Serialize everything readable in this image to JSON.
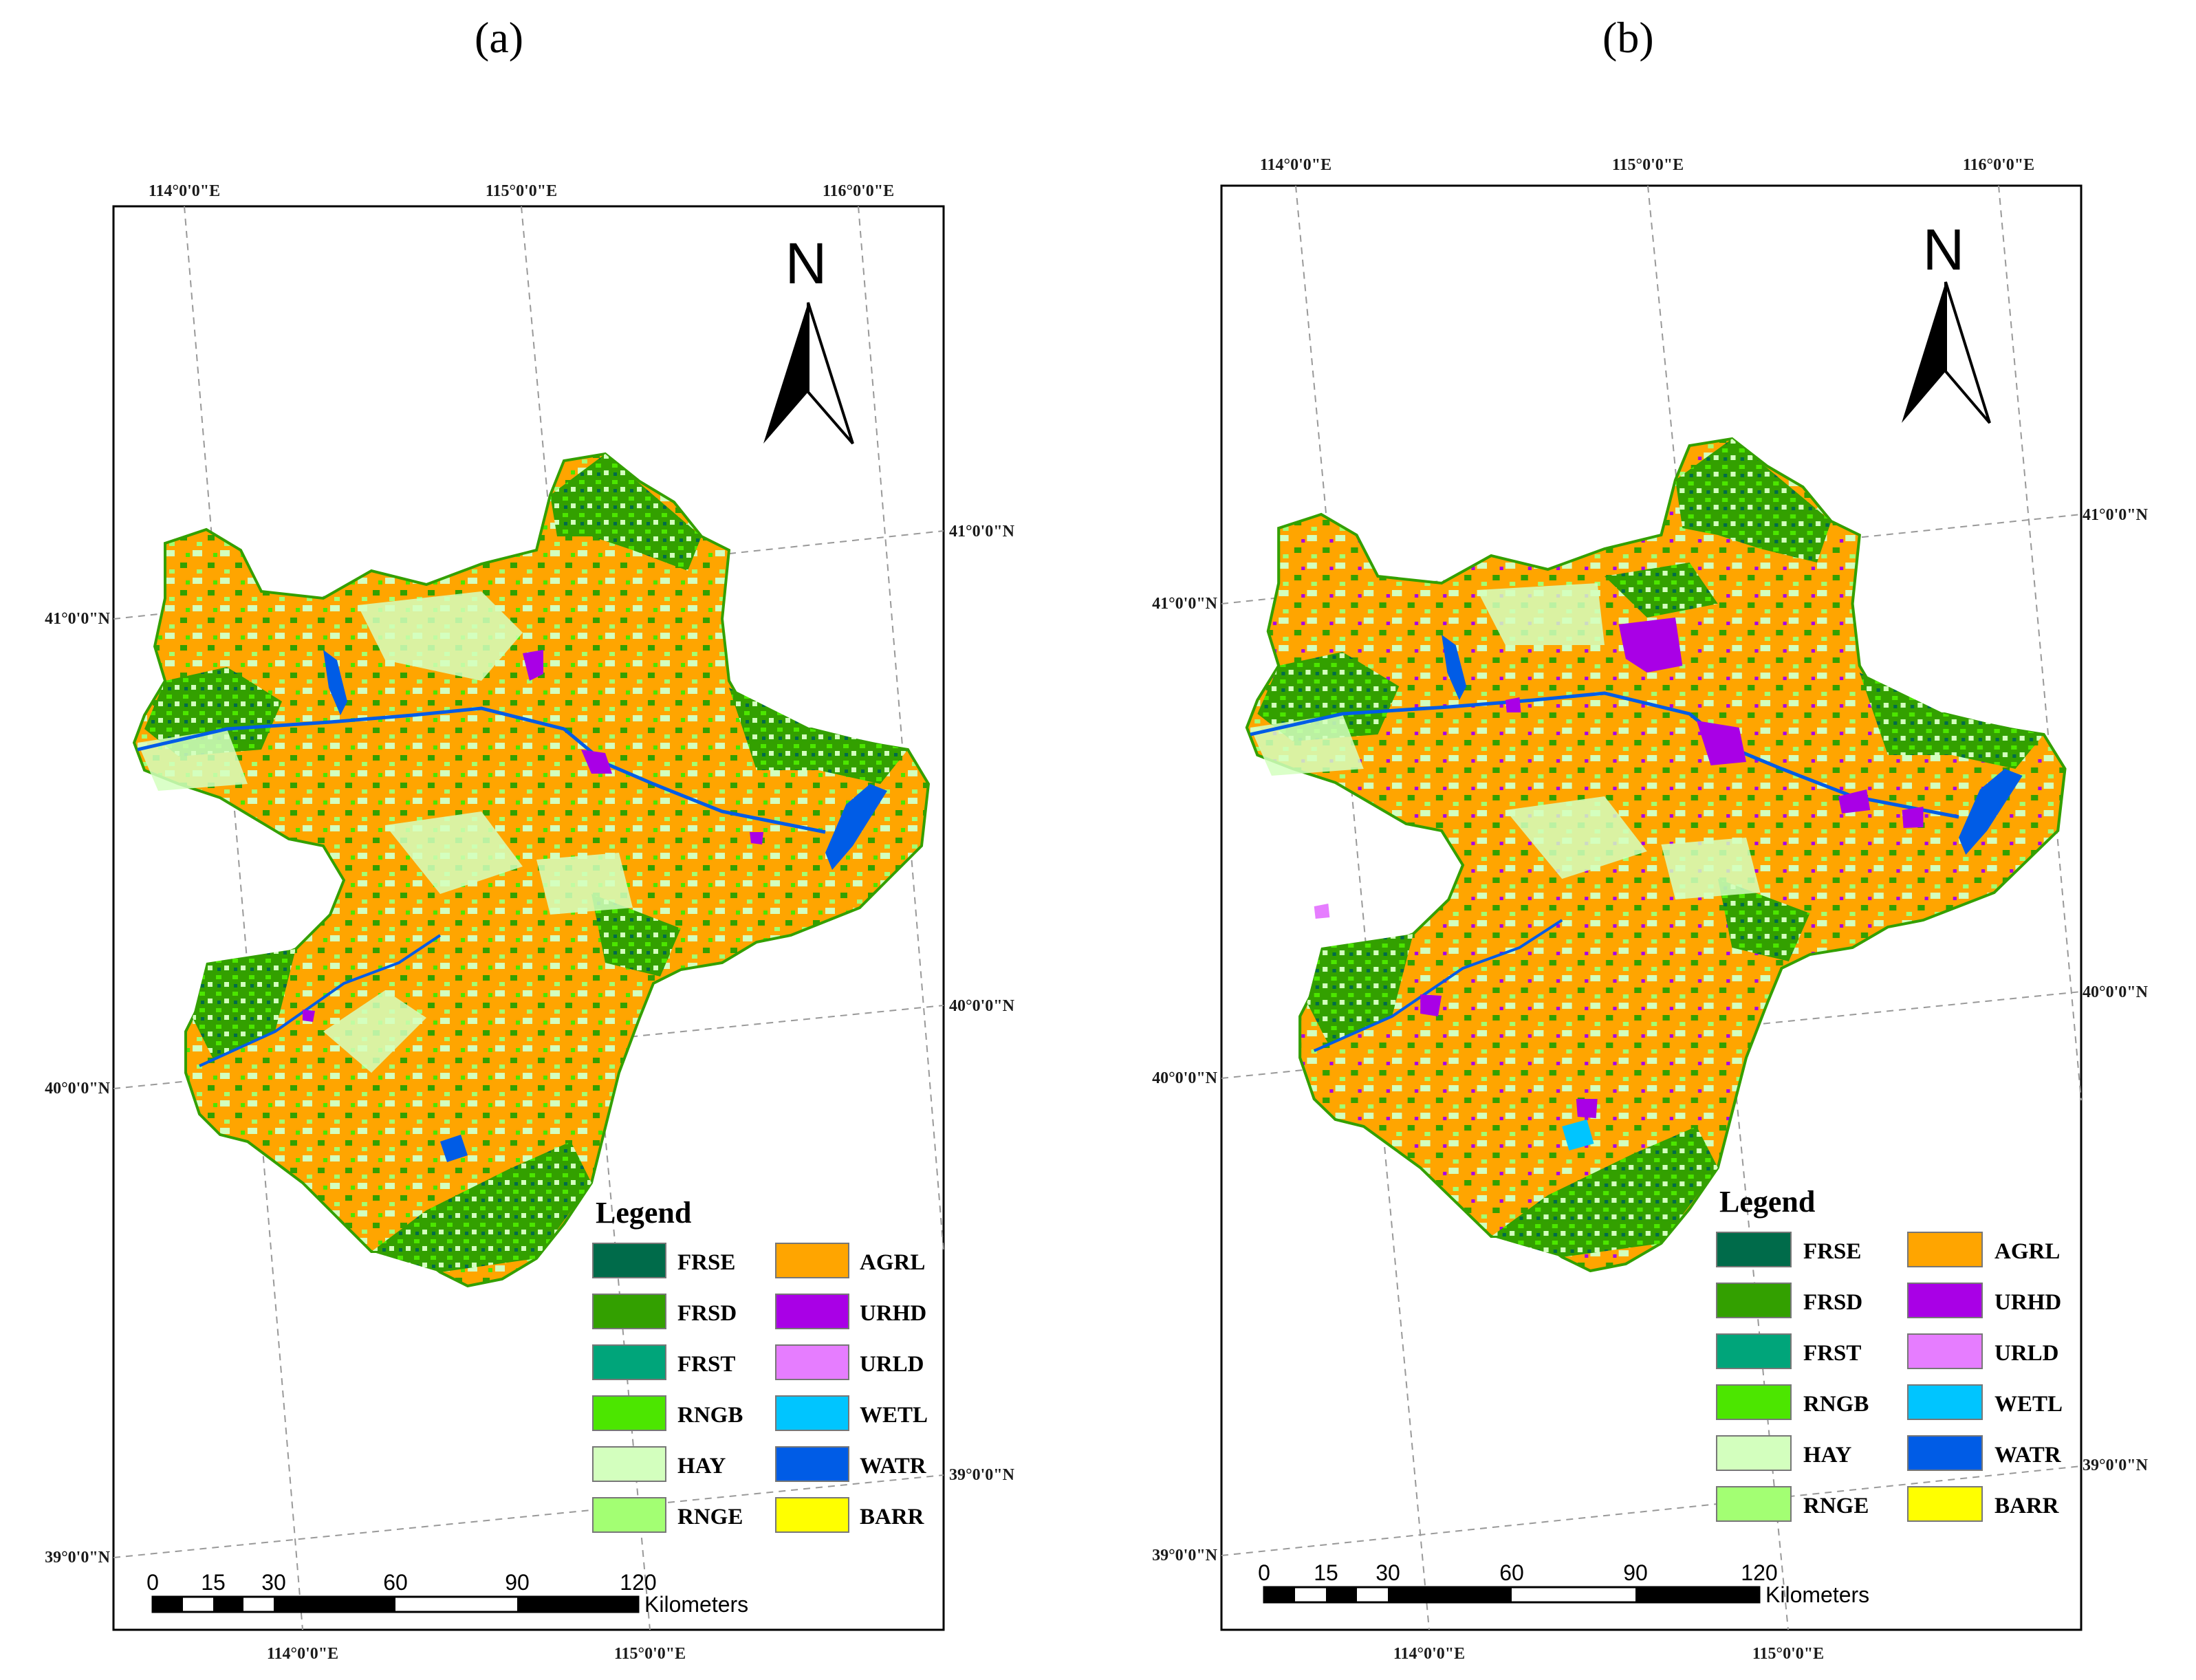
{
  "panels": [
    {
      "label": "(a)",
      "top_longitudes": [
        "114°0'0\"E",
        "115°0'0\"E",
        "116°0'0\"E"
      ],
      "bottom_longitudes": [
        "114°0'0\"E",
        "115°0'0\"E"
      ],
      "left_latitudes": [
        "41°0'0\"N",
        "40°0'0\"N",
        "39°0'0\"N"
      ],
      "right_latitudes": [
        "41°0'0\"N",
        "40°0'0\"N",
        "39°0'0\"N"
      ]
    },
    {
      "label": "(b)",
      "top_longitudes": [
        "114°0'0\"E",
        "115°0'0\"E",
        "116°0'0\"E"
      ],
      "bottom_longitudes": [
        "114°0'0\"E",
        "115°0'0\"E"
      ],
      "left_latitudes": [
        "41°0'0\"N",
        "40°0'0\"N",
        "39°0'0\"N"
      ],
      "right_latitudes": [
        "41°0'0\"N",
        "40°0'0\"N",
        "39°0'0\"N"
      ]
    }
  ],
  "north_arrow": {
    "letter": "N"
  },
  "legend": {
    "title": "Legend",
    "items": [
      {
        "code": "FRSE",
        "color": "#006b4a"
      },
      {
        "code": "FRSD",
        "color": "#33a000"
      },
      {
        "code": "FRST",
        "color": "#00a57a"
      },
      {
        "code": "RNGB",
        "color": "#4ce600"
      },
      {
        "code": "HAY",
        "color": "#d3ffbe"
      },
      {
        "code": "RNGE",
        "color": "#a3ff73"
      },
      {
        "code": "AGRL",
        "color": "#ffa500"
      },
      {
        "code": "URHD",
        "color": "#a900e6"
      },
      {
        "code": "URLD",
        "color": "#e67dff"
      },
      {
        "code": "WETL",
        "color": "#00c5ff"
      },
      {
        "code": "WATR",
        "color": "#005ce6"
      },
      {
        "code": "BARR",
        "color": "#ffff00"
      }
    ]
  },
  "scale_bar": {
    "ticks": [
      "0",
      "15",
      "30",
      "60",
      "90",
      "120"
    ],
    "unit": "Kilometers"
  }
}
